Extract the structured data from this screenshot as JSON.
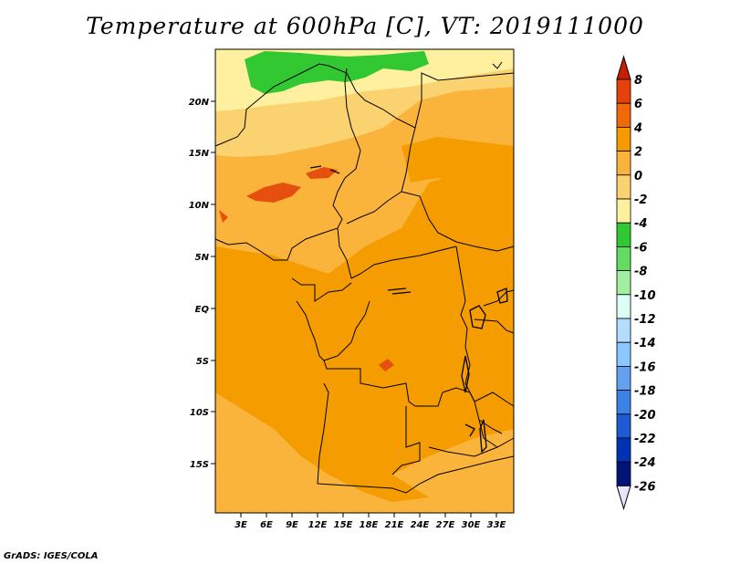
{
  "title": "Temperature at 600hPa [C], VT: 2019111000",
  "credit": "GrADS: IGES/COLA",
  "map": {
    "lat_labels": [
      "20N",
      "15N",
      "10N",
      "5N",
      "EQ",
      "5S",
      "10S",
      "15S"
    ],
    "lon_labels": [
      "3E",
      "6E",
      "9E",
      "12E",
      "15E",
      "18E",
      "21E",
      "24E",
      "27E",
      "30E",
      "33E"
    ]
  },
  "colorbar": {
    "labels": [
      "8",
      "6",
      "4",
      "2",
      "0",
      "-2",
      "-4",
      "-6",
      "-8",
      "-10",
      "-12",
      "-14",
      "-16",
      "-18",
      "-20",
      "-22",
      "-24",
      "-26"
    ],
    "colors": [
      "#c81e00",
      "#e6410a",
      "#f06a0a",
      "#f59a00",
      "#fab43c",
      "#fad270",
      "#fff0a0",
      "#32c832",
      "#64dc64",
      "#a0f0a0",
      "#dcfff5",
      "#b4dcff",
      "#8cc8ff",
      "#64a0f0",
      "#3c82e6",
      "#1e5ad2",
      "#0032b4",
      "#001478",
      "#e6e6ff"
    ]
  }
}
